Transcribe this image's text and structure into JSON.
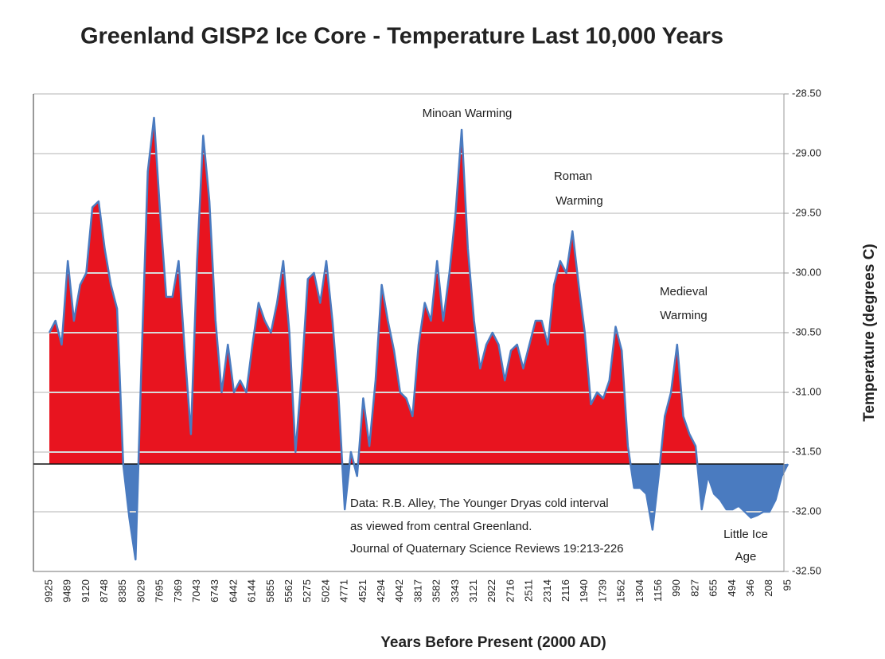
{
  "chart_data": {
    "type": "area",
    "title": "Greenland GISP2 Ice Core - Temperature  Last 10,000 Years",
    "x_label": "Years Before Present (2000 AD)",
    "y_label": "Temperature (degrees C)",
    "y_axis_side": "right",
    "ylim": [
      -32.5,
      -28.5
    ],
    "yticks": [
      {
        "value": -28.5,
        "label": "-28.50"
      },
      {
        "value": -29,
        "label": "-29.00"
      },
      {
        "value": -29.5,
        "label": "-29.50"
      },
      {
        "value": -30,
        "label": "-30.00"
      },
      {
        "value": -30.5,
        "label": "-30.50"
      },
      {
        "value": -31,
        "label": "-31.00"
      },
      {
        "value": -31.5,
        "label": "-31.50"
      },
      {
        "value": -32,
        "label": "-32.00"
      },
      {
        "value": -32.5,
        "label": "-32.50"
      }
    ],
    "grid": true,
    "baseline": -31.6,
    "categories": [
      "9925",
      null,
      null,
      "9489",
      null,
      null,
      "9120",
      null,
      null,
      "8748",
      null,
      null,
      "8385",
      null,
      null,
      "8029",
      null,
      null,
      "7695",
      null,
      null,
      "7369",
      null,
      null,
      "7043",
      null,
      null,
      "6743",
      null,
      null,
      "6442",
      null,
      null,
      "6144",
      null,
      null,
      "5855",
      null,
      null,
      "5562",
      null,
      null,
      "5275",
      null,
      null,
      "5024",
      null,
      null,
      "4771",
      null,
      null,
      "4521",
      null,
      null,
      "4294",
      null,
      null,
      "4042",
      null,
      null,
      "3817",
      null,
      null,
      "3582",
      null,
      null,
      "3343",
      null,
      null,
      "3121",
      null,
      null,
      "2922",
      null,
      null,
      "2716",
      null,
      null,
      "2511",
      null,
      null,
      "2314",
      null,
      null,
      "2116",
      null,
      null,
      "1940",
      null,
      null,
      "1739",
      null,
      null,
      "1562",
      null,
      null,
      "1304",
      null,
      null,
      "1156",
      null,
      null,
      "990",
      null,
      null,
      "827",
      null,
      null,
      "655",
      null,
      null,
      "494",
      null,
      null,
      "346",
      null,
      null,
      "208",
      null,
      null,
      "95"
    ],
    "series": [
      {
        "name": "Temperature",
        "color": "#4a7bc0",
        "above_color": "#e8141f",
        "below_color": "#4a7bc0",
        "values": [
          -30.5,
          -30.4,
          -30.6,
          -29.9,
          -30.4,
          -30.1,
          -30.0,
          -29.45,
          -29.4,
          -29.8,
          -30.1,
          -30.3,
          -31.6,
          -32.05,
          -32.4,
          -30.7,
          -29.15,
          -28.7,
          -29.5,
          -30.2,
          -30.2,
          -29.9,
          -30.65,
          -31.35,
          -29.9,
          -28.85,
          -29.4,
          -30.4,
          -31.0,
          -30.6,
          -31.0,
          -30.9,
          -31.0,
          -30.6,
          -30.25,
          -30.4,
          -30.5,
          -30.25,
          -29.9,
          -30.5,
          -31.5,
          -30.85,
          -30.05,
          -30.0,
          -30.25,
          -29.9,
          -30.4,
          -31.05,
          -31.98,
          -31.5,
          -31.7,
          -31.05,
          -31.45,
          -30.9,
          -30.1,
          -30.4,
          -30.65,
          -31.0,
          -31.05,
          -31.2,
          -30.6,
          -30.25,
          -30.4,
          -29.9,
          -30.4,
          -30.0,
          -29.5,
          -28.8,
          -29.8,
          -30.4,
          -30.8,
          -30.6,
          -30.5,
          -30.6,
          -30.9,
          -30.65,
          -30.6,
          -30.8,
          -30.6,
          -30.4,
          -30.4,
          -30.6,
          -30.1,
          -29.9,
          -30.0,
          -29.65,
          -30.1,
          -30.5,
          -31.1,
          -31.0,
          -31.05,
          -30.9,
          -30.45,
          -30.65,
          -31.45,
          -31.8,
          -31.8,
          -31.85,
          -32.15,
          -31.7,
          -31.2,
          -31.0,
          -30.6,
          -31.2,
          -31.35,
          -31.45,
          -31.98,
          -31.7,
          -31.85,
          -31.9,
          -31.98,
          -31.98,
          -31.95,
          -32.0,
          -32.05,
          -32.03,
          -32.0,
          -32.0,
          -31.9,
          -31.7,
          -31.6
        ]
      }
    ],
    "annotations": [
      {
        "text": "Minoan Warming"
      },
      {
        "text": "Roman"
      },
      {
        "text": "Warming"
      },
      {
        "text": "Medieval"
      },
      {
        "text": "Warming"
      },
      {
        "text": "Little Ice"
      },
      {
        "text": "Age"
      },
      {
        "text": "Data: R.B. Alley,  The Younger Dryas cold interval"
      },
      {
        "text": "as viewed from central Greenland."
      },
      {
        "text": "Journal of Quaternary  Science Reviews 19:213-226"
      }
    ]
  }
}
